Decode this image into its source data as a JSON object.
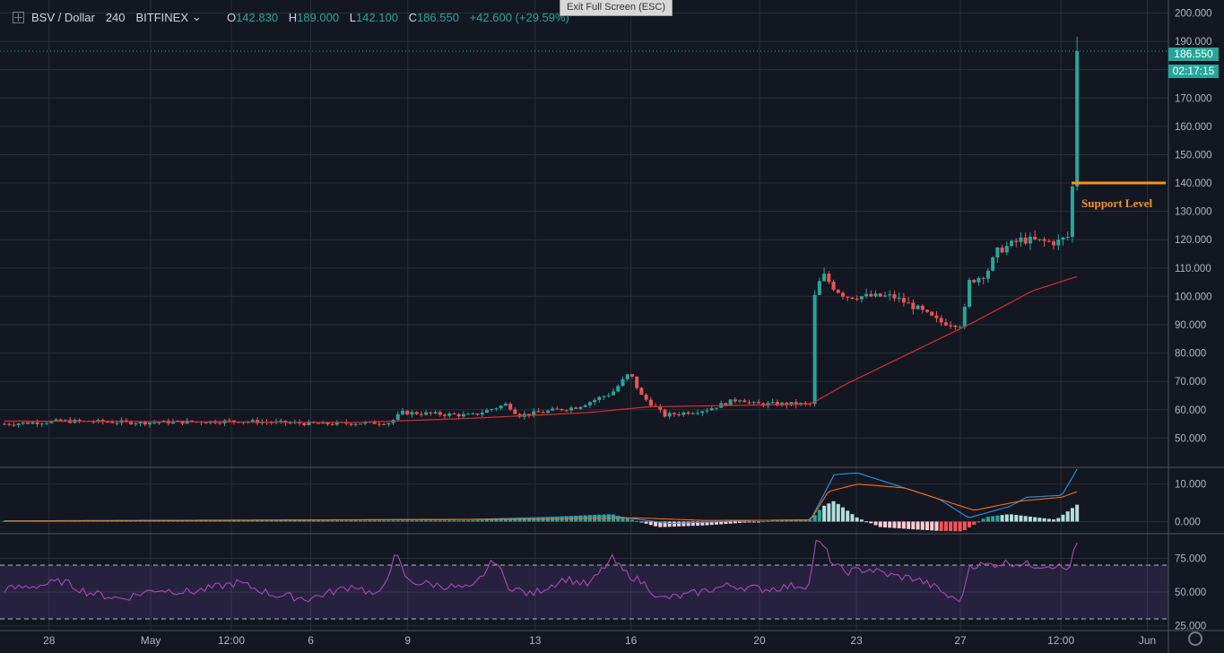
{
  "header": {
    "symbol": "BSV / Dollar",
    "interval": "240",
    "exchange": "BITFINEX",
    "open_label": "O",
    "open": "142.830",
    "high_label": "H",
    "high": "189.000",
    "low_label": "L",
    "low": "142.100",
    "close_label": "C",
    "close": "186.550",
    "change": "+42.600 (+29.59%)"
  },
  "exit_fullscreen": "Exit Full Screen (ESC)",
  "price_badge": "186.550",
  "countdown_badge": "02:17:15",
  "support": {
    "label": "Support Level",
    "price": 140.0,
    "color": "#f7931a"
  },
  "colors": {
    "up": "#26a69a",
    "down": "#ef5350",
    "ma": "#d32f2f",
    "macd": "#2196f3",
    "signal": "#ff6d00",
    "rsi": "#ab47bc"
  },
  "chart_data": [
    {
      "type": "candlestick",
      "title": "BSV / Dollar 240 BITFINEX",
      "y_ticks": [
        "50.000",
        "60.000",
        "70.000",
        "80.000",
        "90.000",
        "100.000",
        "110.000",
        "120.000",
        "130.000",
        "140.000",
        "150.000",
        "160.000",
        "170.000",
        "180.000",
        "190.000",
        "200.000"
      ],
      "ylim": [
        40,
        203
      ],
      "x_ticks": [
        "28",
        "May",
        "12:00",
        "6",
        "9",
        "13",
        "16",
        "20",
        "23",
        "27",
        "12:00",
        "Jun"
      ],
      "x_tick_positions": [
        0.042,
        0.129,
        0.198,
        0.266,
        0.349,
        0.458,
        0.54,
        0.65,
        0.733,
        0.822,
        0.908,
        0.982
      ],
      "price_keypoints": [
        [
          0,
          55
        ],
        [
          0.05,
          56
        ],
        [
          0.12,
          55.5
        ],
        [
          0.2,
          56
        ],
        [
          0.27,
          55
        ],
        [
          0.33,
          55.5
        ],
        [
          0.34,
          59
        ],
        [
          0.4,
          58
        ],
        [
          0.43,
          62
        ],
        [
          0.44,
          58
        ],
        [
          0.49,
          61
        ],
        [
          0.52,
          66
        ],
        [
          0.535,
          73
        ],
        [
          0.545,
          65
        ],
        [
          0.565,
          58
        ],
        [
          0.6,
          60
        ],
        [
          0.63,
          64
        ],
        [
          0.64,
          62
        ],
        [
          0.69,
          62
        ],
        [
          0.692,
          98
        ],
        [
          0.7,
          108
        ],
        [
          0.71,
          103
        ],
        [
          0.72,
          100
        ],
        [
          0.76,
          100
        ],
        [
          0.78,
          96
        ],
        [
          0.8,
          91
        ],
        [
          0.82,
          90
        ],
        [
          0.825,
          105
        ],
        [
          0.84,
          108
        ],
        [
          0.85,
          116
        ],
        [
          0.87,
          120
        ],
        [
          0.9,
          119
        ],
        [
          0.91,
          121
        ],
        [
          0.915,
          143
        ],
        [
          0.918,
          186.55
        ]
      ],
      "ma_keypoints": [
        [
          0,
          56
        ],
        [
          0.3,
          55.5
        ],
        [
          0.4,
          57
        ],
        [
          0.5,
          59
        ],
        [
          0.55,
          61
        ],
        [
          0.69,
          62
        ],
        [
          0.72,
          69
        ],
        [
          0.77,
          79
        ],
        [
          0.83,
          91
        ],
        [
          0.88,
          102
        ],
        [
          0.918,
          107
        ]
      ],
      "last": 186.55,
      "support_price": 140.0
    },
    {
      "type": "line",
      "title": "MACD",
      "y_ticks": [
        "0.000",
        "10.000"
      ],
      "ylim": [
        -3,
        14
      ],
      "series": [
        {
          "keypoints": [
            [
              0,
              0.2
            ],
            [
              0.4,
              0.6
            ],
            [
              0.52,
              1.5
            ],
            [
              0.57,
              -0.5
            ],
            [
              0.64,
              0.3
            ],
            [
              0.69,
              0.5
            ],
            [
              0.71,
              12.5
            ],
            [
              0.73,
              13
            ],
            [
              0.8,
              6
            ],
            [
              0.825,
              1
            ],
            [
              0.86,
              4
            ],
            [
              0.875,
              6.5
            ],
            [
              0.905,
              7
            ],
            [
              0.918,
              14
            ]
          ]
        },
        {
          "keypoints": [
            [
              0,
              0.1
            ],
            [
              0.45,
              0.6
            ],
            [
              0.54,
              1.0
            ],
            [
              0.6,
              0.3
            ],
            [
              0.69,
              0.4
            ],
            [
              0.705,
              8
            ],
            [
              0.73,
              10
            ],
            [
              0.77,
              9
            ],
            [
              0.81,
              5
            ],
            [
              0.83,
              3
            ],
            [
              0.87,
              5.5
            ],
            [
              0.905,
              6.5
            ],
            [
              0.918,
              8
            ]
          ]
        }
      ],
      "histogram_keypoints": [
        [
          0,
          0.2
        ],
        [
          0.4,
          0.3
        ],
        [
          0.52,
          2
        ],
        [
          0.56,
          -1.5
        ],
        [
          0.6,
          -1
        ],
        [
          0.66,
          0.3
        ],
        [
          0.69,
          0.5
        ],
        [
          0.7,
          4
        ],
        [
          0.71,
          5.5
        ],
        [
          0.73,
          1
        ],
        [
          0.75,
          -1.5
        ],
        [
          0.8,
          -2.5
        ],
        [
          0.82,
          -2.6
        ],
        [
          0.83,
          -0.8
        ],
        [
          0.84,
          1.2
        ],
        [
          0.86,
          2.0
        ],
        [
          0.9,
          0.5
        ],
        [
          0.918,
          4.5
        ]
      ]
    },
    {
      "type": "line",
      "title": "RSI",
      "y_ticks": [
        "25.000",
        "50.000",
        "75.000"
      ],
      "ylim": [
        22,
        92
      ],
      "bands": [
        30,
        70
      ],
      "series": [
        {
          "keypoints": [
            [
              0,
              52
            ],
            [
              0.03,
              55
            ],
            [
              0.05,
              58
            ],
            [
              0.07,
              50
            ],
            [
              0.1,
              45
            ],
            [
              0.13,
              52
            ],
            [
              0.16,
              50
            ],
            [
              0.2,
              57
            ],
            [
              0.23,
              48
            ],
            [
              0.26,
              45
            ],
            [
              0.3,
              55
            ],
            [
              0.32,
              46
            ],
            [
              0.335,
              78
            ],
            [
              0.345,
              58
            ],
            [
              0.4,
              52
            ],
            [
              0.42,
              75
            ],
            [
              0.43,
              55
            ],
            [
              0.45,
              48
            ],
            [
              0.48,
              60
            ],
            [
              0.5,
              55
            ],
            [
              0.52,
              75
            ],
            [
              0.53,
              65
            ],
            [
              0.55,
              55
            ],
            [
              0.56,
              45
            ],
            [
              0.58,
              47
            ],
            [
              0.62,
              55
            ],
            [
              0.65,
              52
            ],
            [
              0.68,
              55
            ],
            [
              0.69,
              55
            ],
            [
              0.693,
              87
            ],
            [
              0.7,
              85
            ],
            [
              0.71,
              70
            ],
            [
              0.72,
              65
            ],
            [
              0.74,
              67
            ],
            [
              0.76,
              62
            ],
            [
              0.78,
              60
            ],
            [
              0.8,
              52
            ],
            [
              0.81,
              45
            ],
            [
              0.82,
              45
            ],
            [
              0.825,
              70
            ],
            [
              0.84,
              70
            ],
            [
              0.86,
              72
            ],
            [
              0.88,
              70
            ],
            [
              0.9,
              70
            ],
            [
              0.91,
              66
            ],
            [
              0.918,
              86
            ]
          ]
        }
      ]
    }
  ]
}
